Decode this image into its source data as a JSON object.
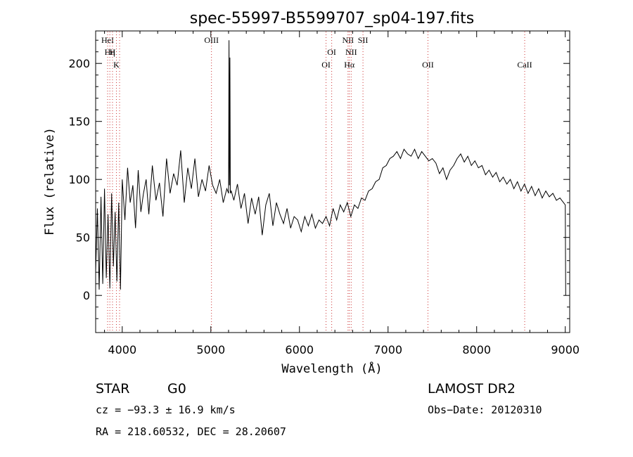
{
  "chart_data": {
    "type": "line",
    "title": "spec-55997-B5599707_sp04-197.fits",
    "xlabel": "Wavelength (Å)",
    "ylabel": "Flux (relative)",
    "xlim": [
      3700,
      9050
    ],
    "ylim": [
      -32,
      228
    ],
    "x_ticks": [
      4000,
      5000,
      6000,
      7000,
      8000,
      9000
    ],
    "y_ticks": [
      0,
      50,
      100,
      150,
      200
    ],
    "grid": false,
    "legend": "none",
    "series": [
      {
        "color": "#000000",
        "x": [
          3700,
          3720,
          3740,
          3760,
          3780,
          3800,
          3820,
          3840,
          3860,
          3880,
          3900,
          3920,
          3940,
          3960,
          3980,
          4000,
          4030,
          4060,
          4090,
          4120,
          4150,
          4180,
          4210,
          4240,
          4270,
          4300,
          4340,
          4380,
          4420,
          4460,
          4500,
          4540,
          4580,
          4620,
          4660,
          4700,
          4740,
          4780,
          4820,
          4860,
          4900,
          4940,
          4980,
          5020,
          5060,
          5100,
          5140,
          5180,
          5200,
          5205,
          5210,
          5215,
          5220,
          5230,
          5260,
          5300,
          5340,
          5380,
          5420,
          5460,
          5500,
          5540,
          5580,
          5620,
          5660,
          5700,
          5740,
          5780,
          5820,
          5860,
          5900,
          5940,
          5980,
          6020,
          6060,
          6100,
          6140,
          6180,
          6220,
          6260,
          6300,
          6340,
          6380,
          6420,
          6460,
          6500,
          6540,
          6580,
          6620,
          6660,
          6700,
          6740,
          6780,
          6820,
          6860,
          6900,
          6940,
          6980,
          7020,
          7060,
          7100,
          7140,
          7180,
          7220,
          7260,
          7300,
          7340,
          7380,
          7420,
          7460,
          7500,
          7540,
          7580,
          7620,
          7660,
          7700,
          7740,
          7780,
          7820,
          7860,
          7900,
          7940,
          7980,
          8020,
          8060,
          8100,
          8140,
          8180,
          8220,
          8260,
          8300,
          8340,
          8380,
          8420,
          8460,
          8500,
          8540,
          8580,
          8620,
          8660,
          8700,
          8740,
          8780,
          8820,
          8860,
          8900,
          8940,
          8980,
          9000,
          9005
        ],
        "y": [
          20,
          75,
          5,
          85,
          10,
          92,
          15,
          70,
          6,
          88,
          25,
          72,
          12,
          80,
          5,
          100,
          65,
          110,
          80,
          95,
          58,
          108,
          72,
          88,
          100,
          70,
          112,
          82,
          97,
          68,
          118,
          88,
          105,
          95,
          125,
          80,
          110,
          92,
          118,
          85,
          100,
          90,
          112,
          95,
          88,
          100,
          80,
          92,
          88,
          220,
          95,
          205,
          88,
          90,
          82,
          96,
          75,
          88,
          62,
          84,
          70,
          85,
          52,
          78,
          88,
          60,
          80,
          70,
          62,
          75,
          58,
          68,
          65,
          55,
          68,
          60,
          70,
          58,
          65,
          62,
          68,
          60,
          75,
          65,
          78,
          72,
          80,
          68,
          78,
          75,
          84,
          82,
          90,
          92,
          98,
          100,
          110,
          112,
          118,
          120,
          124,
          118,
          126,
          122,
          120,
          126,
          118,
          124,
          120,
          116,
          118,
          114,
          105,
          110,
          100,
          108,
          112,
          118,
          122,
          115,
          120,
          112,
          116,
          110,
          112,
          104,
          108,
          102,
          106,
          98,
          102,
          96,
          100,
          92,
          98,
          90,
          96,
          88,
          94,
          86,
          92,
          84,
          90,
          85,
          88,
          82,
          84,
          80,
          78,
          0
        ]
      }
    ],
    "line_markers": [
      {
        "wave": 3835,
        "label": "HeI",
        "row": 0
      },
      {
        "wave": 3860,
        "label": "Hη",
        "row": 1
      },
      {
        "wave": 3890,
        "label": "H",
        "row": 1
      },
      {
        "wave": 3934,
        "label": "K",
        "row": 2
      },
      {
        "wave": 3970,
        "label": "",
        "row": 2
      },
      {
        "wave": 5007,
        "label": "OIII",
        "row": 0
      },
      {
        "wave": 6300,
        "label": "OI",
        "row": 2
      },
      {
        "wave": 6364,
        "label": "OI",
        "row": 1
      },
      {
        "wave": 6548,
        "label": "NII",
        "row": 0
      },
      {
        "wave": 6563,
        "label": "Hα",
        "row": 2
      },
      {
        "wave": 6584,
        "label": "NII",
        "row": 1
      },
      {
        "wave": 6717,
        "label": "SII",
        "row": 0
      },
      {
        "wave": 7450,
        "label": "OII",
        "row": 2
      },
      {
        "wave": 8542,
        "label": "CaII",
        "row": 2
      }
    ],
    "marker_color": "#cc3333"
  },
  "info": {
    "object_class": "STAR",
    "subclass": "G0",
    "survey": "LAMOST DR2",
    "redshift": "cz = −93.3 ± 16.9 km/s",
    "obs_date": "Obs−Date: 20120310",
    "coords": "RA = 218.60532, DEC =  28.20607"
  }
}
